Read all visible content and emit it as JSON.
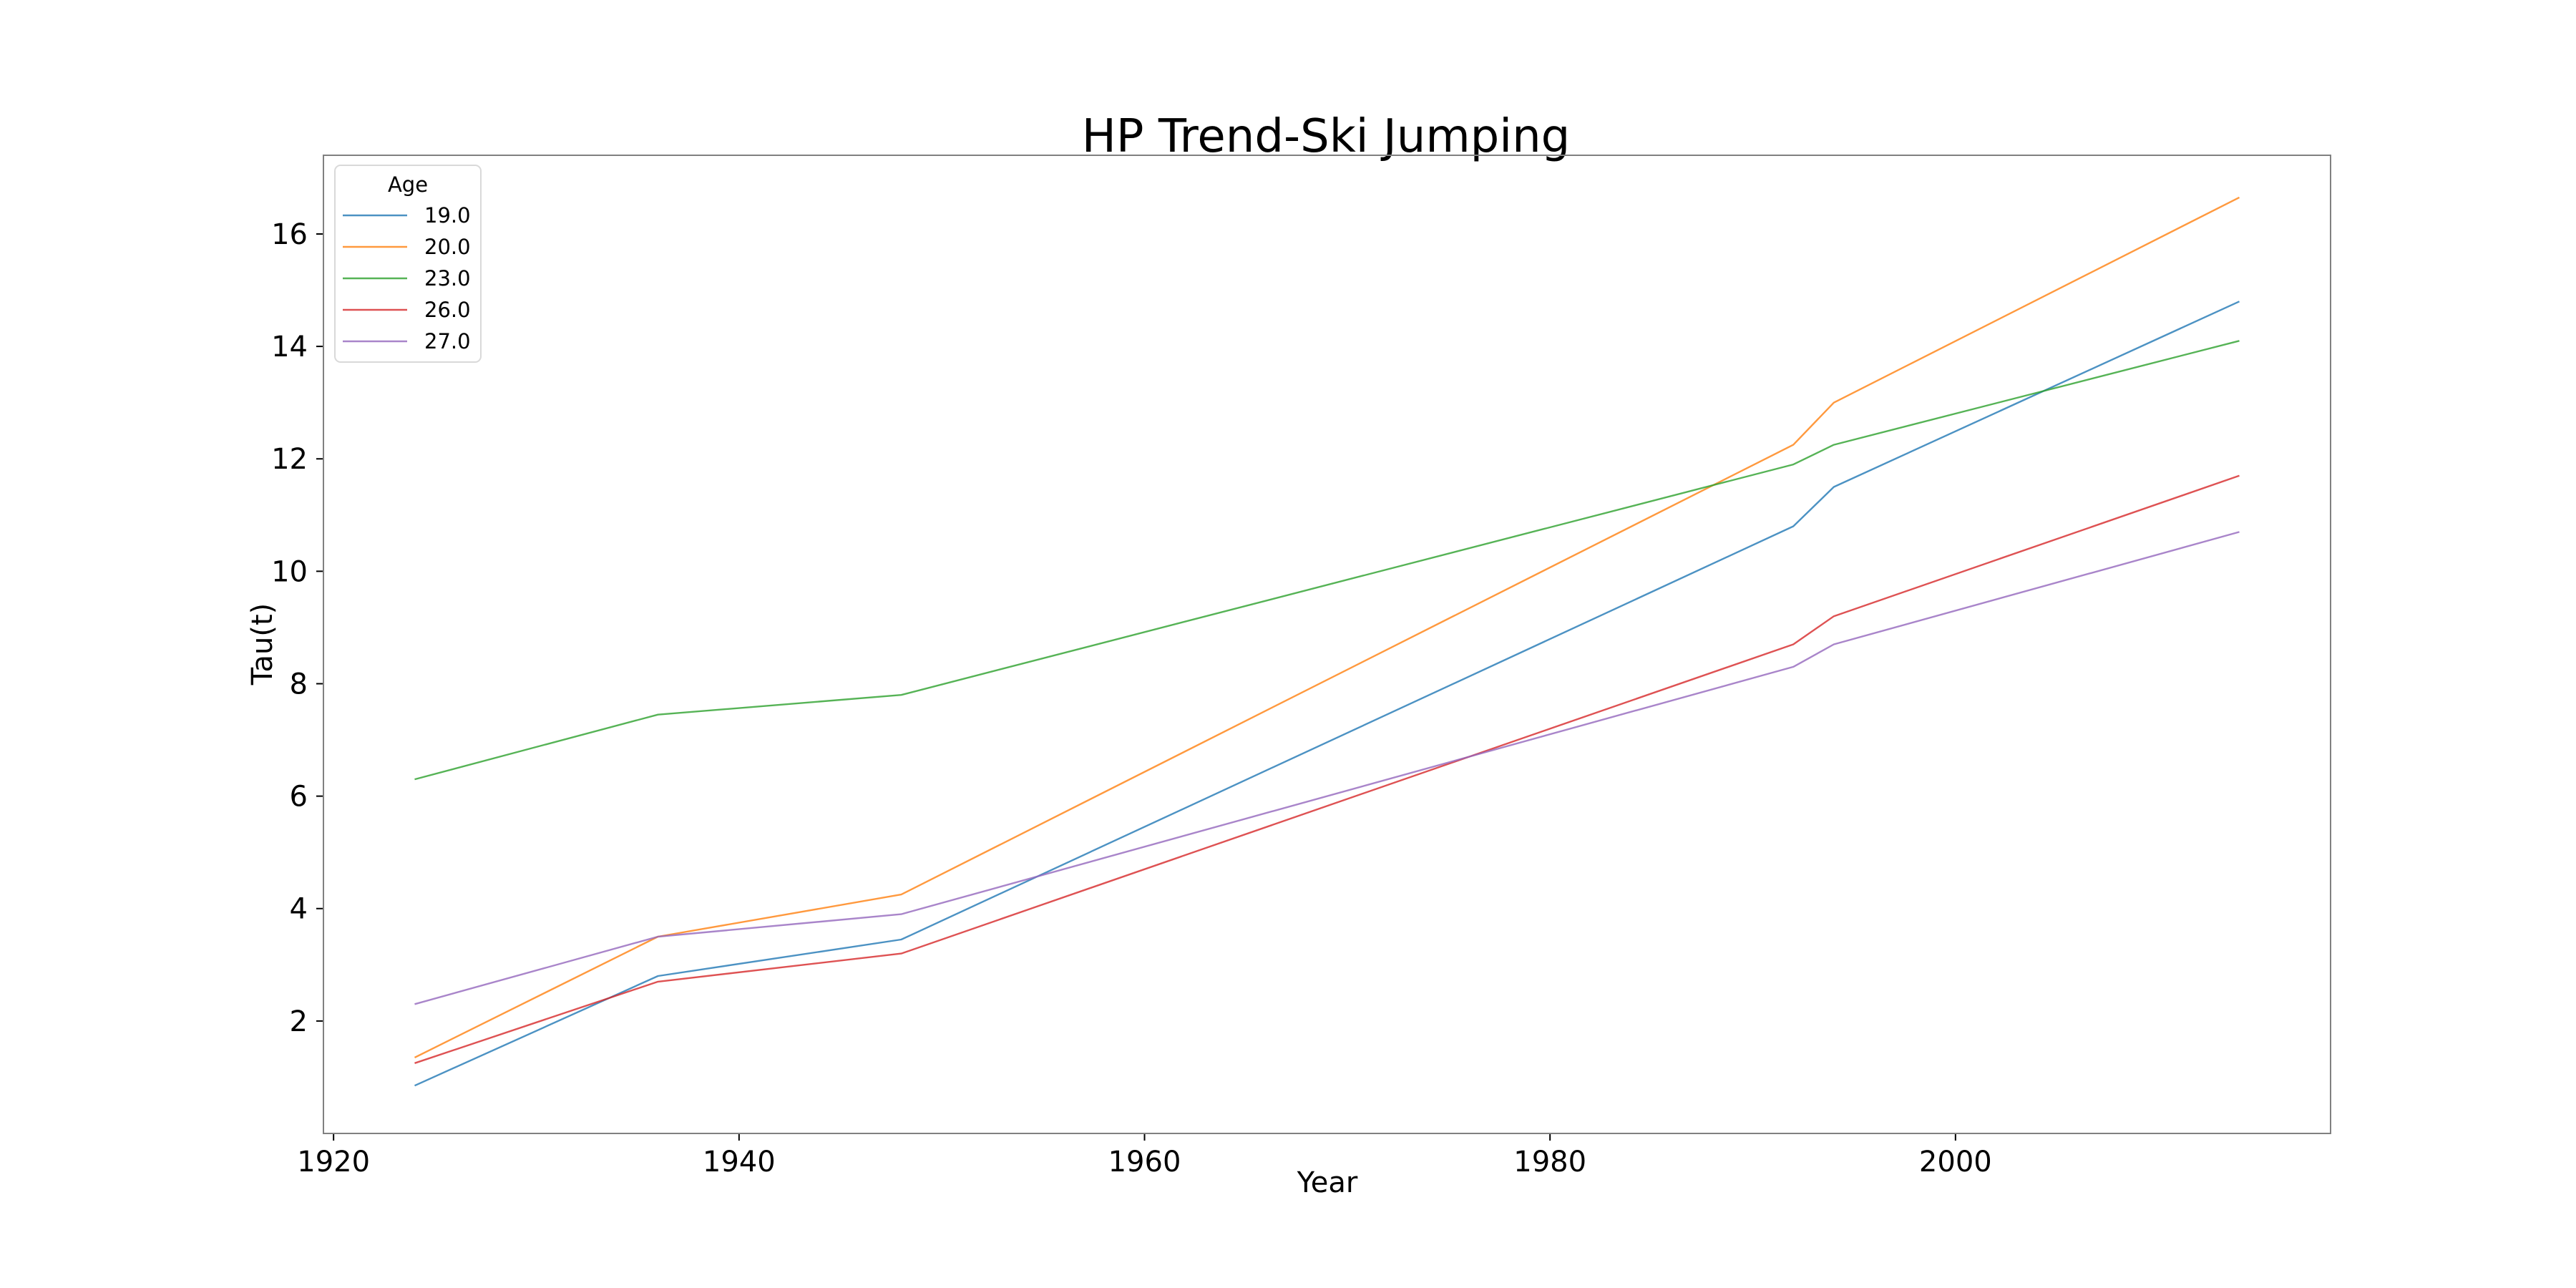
{
  "chart_data": {
    "type": "line",
    "title": "HP Trend-Ski Jumping",
    "xlabel": "Year",
    "ylabel": "Tau(t)",
    "xlim": [
      1919.5,
      2018.5
    ],
    "ylim": [
      0.0,
      17.4
    ],
    "xticks": [
      1920,
      1940,
      1960,
      1980,
      2000
    ],
    "yticks": [
      2,
      4,
      6,
      8,
      10,
      12,
      14,
      16
    ],
    "grid": false,
    "legend": {
      "title": "Age",
      "position": "top-left"
    },
    "x": [
      1924,
      1936,
      1948,
      1992,
      1994,
      2014
    ],
    "series": [
      {
        "name": "19.0",
        "color": "#1f77b4",
        "values": [
          0.85,
          2.8,
          3.45,
          10.8,
          11.5,
          14.8
        ]
      },
      {
        "name": "20.0",
        "color": "#ff7f0e",
        "values": [
          1.35,
          3.5,
          4.25,
          12.25,
          13.0,
          16.65
        ]
      },
      {
        "name": "23.0",
        "color": "#2ca02c",
        "values": [
          6.3,
          7.45,
          7.8,
          11.9,
          12.25,
          14.1
        ]
      },
      {
        "name": "26.0",
        "color": "#d62728",
        "values": [
          1.25,
          2.7,
          3.2,
          8.7,
          9.2,
          11.7
        ]
      },
      {
        "name": "27.0",
        "color": "#9467bd",
        "values": [
          2.3,
          3.5,
          3.9,
          8.3,
          8.7,
          10.7
        ]
      }
    ]
  }
}
